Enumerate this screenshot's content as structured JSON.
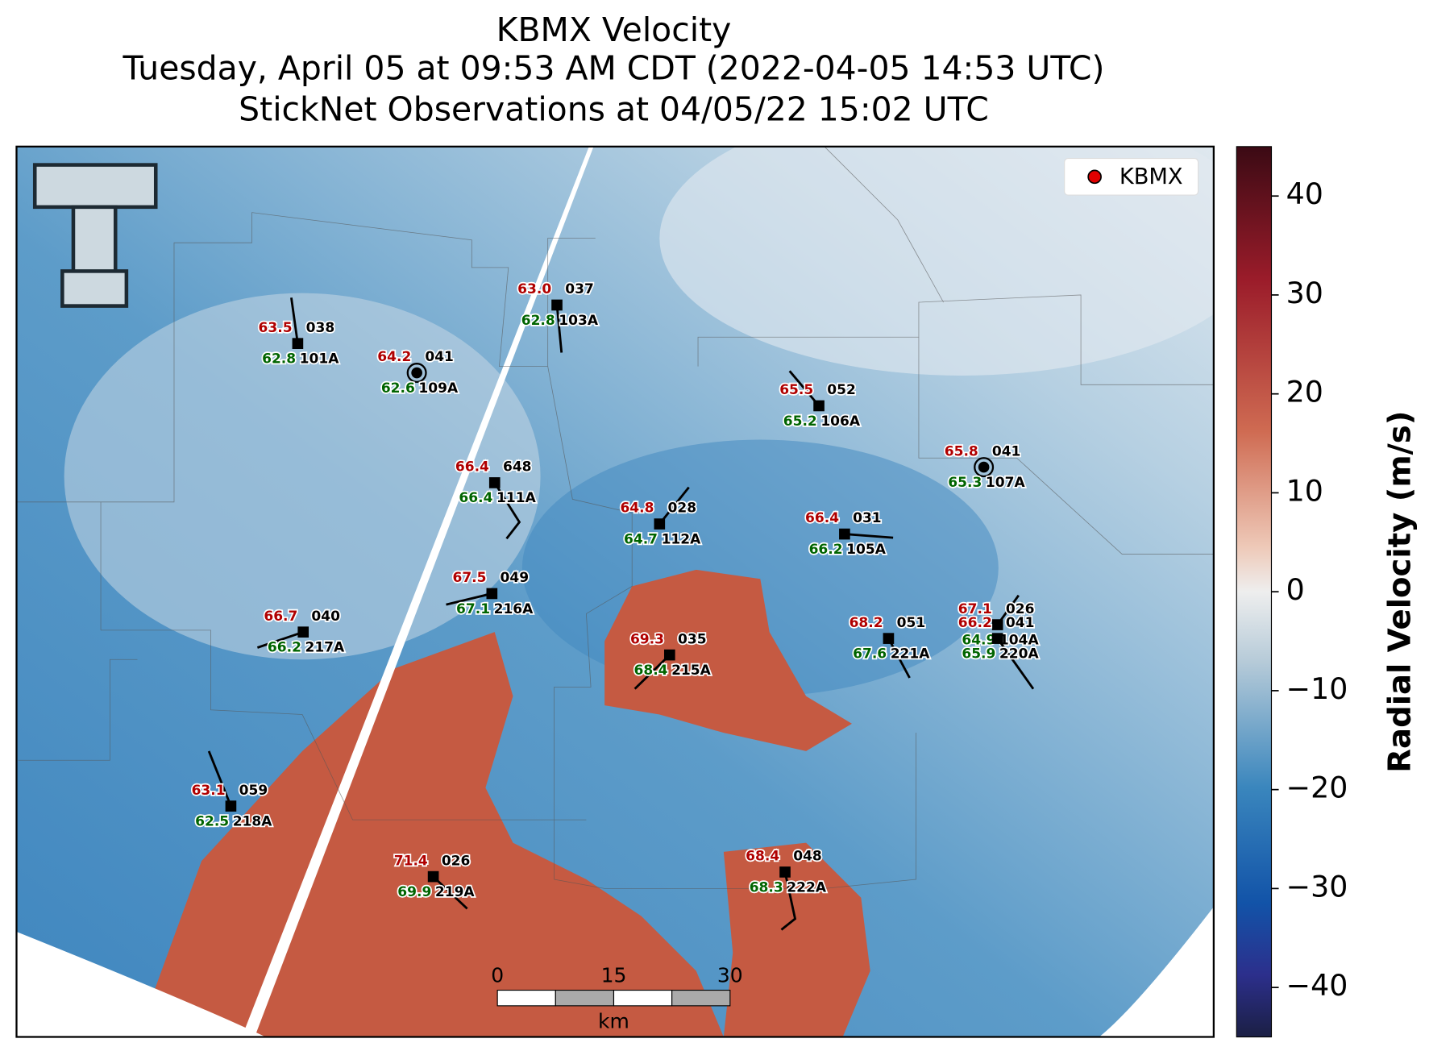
{
  "header": {
    "title": "KBMX Velocity",
    "subtitle": "Tuesday, April 05 at 09:53 AM CDT (2022-04-05 14:53 UTC)",
    "subtitle2": "StickNet Observations at 04/05/22 15:02 UTC"
  },
  "legend": {
    "label": "KBMX",
    "color": "#e00000"
  },
  "colorbar": {
    "label": "Radial Velocity (m/s)",
    "ylim": [
      -45,
      45
    ],
    "yticks": [
      {
        "value": -40,
        "label": "−40"
      },
      {
        "value": -30,
        "label": "−30"
      },
      {
        "value": -20,
        "label": "−20"
      },
      {
        "value": -10,
        "label": "−10"
      },
      0,
      10,
      20,
      30,
      40
    ]
  },
  "scale_bar": {
    "ticks": [
      0,
      15,
      30
    ],
    "unit": "km"
  },
  "stations": [
    {
      "id": "101A",
      "temperature": "63.5",
      "dewpoint": "62.8",
      "pressure": "038"
    },
    {
      "id": "109A",
      "temperature": "64.2",
      "dewpoint": "62.6",
      "pressure": "041"
    },
    {
      "id": "103A",
      "temperature": "63.0",
      "dewpoint": "62.8",
      "pressure": "037"
    },
    {
      "id": "106A",
      "temperature": "65.5",
      "dewpoint": "65.2",
      "pressure": "052"
    },
    {
      "id": "107A",
      "temperature": "65.8",
      "dewpoint": "65.3",
      "pressure": "041"
    },
    {
      "id": "111A",
      "temperature": "66.4",
      "dewpoint": "66.4",
      "pressure": "648"
    },
    {
      "id": "112A",
      "temperature": "64.8",
      "dewpoint": "64.7",
      "pressure": "028"
    },
    {
      "id": "105A",
      "temperature": "66.4",
      "dewpoint": "66.2",
      "pressure": "031"
    },
    {
      "id": "216A",
      "temperature": "67.5",
      "dewpoint": "67.1",
      "pressure": "049"
    },
    {
      "id": "217A",
      "temperature": "66.7",
      "dewpoint": "66.2",
      "pressure": "040"
    },
    {
      "id": "215A",
      "temperature": "69.3",
      "dewpoint": "68.4",
      "pressure": "035"
    },
    {
      "id": "221A",
      "temperature": "68.2",
      "dewpoint": "67.6",
      "pressure": "051"
    },
    {
      "id": "104A",
      "temperature": "67.1",
      "dewpoint": "64.9",
      "pressure": "026"
    },
    {
      "id": "220A",
      "temperature": "66.2",
      "dewpoint": "65.9",
      "pressure": "041"
    },
    {
      "id": "218A",
      "temperature": "63.1",
      "dewpoint": "62.5",
      "pressure": "059"
    },
    {
      "id": "219A",
      "temperature": "71.4",
      "dewpoint": "69.9",
      "pressure": "026"
    },
    {
      "id": "222A",
      "temperature": "68.4",
      "dewpoint": "68.3",
      "pressure": "048"
    }
  ]
}
